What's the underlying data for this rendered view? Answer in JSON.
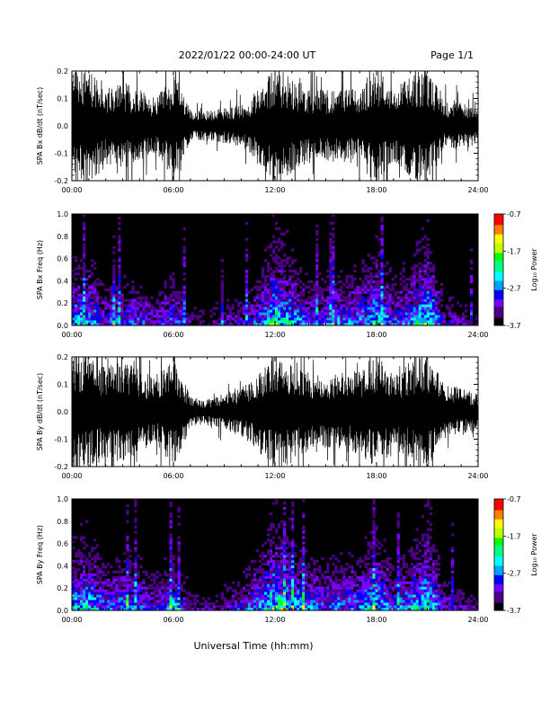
{
  "header": {
    "title": "2022/01/22  00:00-24:00 UT",
    "page": "Page 1/1"
  },
  "footer": {
    "xlabel": "Universal Time (hh:mm)"
  },
  "colors": {
    "trace": "#000000",
    "spectrogram_background": "#000000",
    "colormap": [
      "#000000",
      "#4b0082",
      "#7a00ff",
      "#0000ff",
      "#00a0ff",
      "#00ffff",
      "#00ff80",
      "#00ff00",
      "#c0ff00",
      "#ffff00",
      "#ff8000",
      "#ff0000"
    ]
  },
  "chart_data": [
    {
      "type": "line",
      "id": "bx_dbdt",
      "ylabel": "SPA Bx dB/dt (nT/sec)",
      "x_ticks": [
        "00:00",
        "06:00",
        "12:00",
        "18:00",
        "24:00"
      ],
      "xlim": [
        0,
        24
      ],
      "ylim": [
        -0.2,
        0.2
      ],
      "y_ticks": [
        "-0.2",
        "-0.1",
        "0.0",
        "0.1",
        "0.2"
      ],
      "envelope": {
        "x_hours": [
          0,
          1,
          2,
          3,
          4,
          5,
          6,
          7,
          8,
          9,
          10,
          11,
          12,
          13,
          14,
          15,
          16,
          17,
          18,
          19,
          20,
          21,
          22,
          23,
          24
        ],
        "amplitude": [
          0.2,
          0.2,
          0.13,
          0.15,
          0.12,
          0.09,
          0.18,
          0.05,
          0.05,
          0.06,
          0.07,
          0.12,
          0.2,
          0.16,
          0.13,
          0.12,
          0.12,
          0.13,
          0.2,
          0.12,
          0.17,
          0.2,
          0.08,
          0.08,
          0.06
        ]
      }
    },
    {
      "type": "heatmap",
      "id": "bx_spectrogram",
      "ylabel": "SPA Bx Freq (Hz)",
      "x_ticks": [
        "00:00",
        "06:00",
        "12:00",
        "18:00",
        "24:00"
      ],
      "xlim": [
        0,
        24
      ],
      "ylim": [
        0,
        1.0
      ],
      "y_ticks": [
        "0.0",
        "0.2",
        "0.4",
        "0.6",
        "0.8",
        "1.0"
      ],
      "colorbar": {
        "label": "Log₁₀ Power",
        "range": [
          -3.7,
          -0.7
        ],
        "ticks": [
          "-0.7",
          "-1.7",
          "-2.7",
          "-3.7"
        ]
      },
      "activity": {
        "x_hours": [
          0,
          1,
          2,
          3,
          4,
          5,
          6,
          7,
          8,
          9,
          10,
          11,
          12,
          13,
          14,
          15,
          16,
          17,
          18,
          19,
          20,
          21,
          22,
          23,
          24
        ],
        "level": [
          0.7,
          0.75,
          0.55,
          0.6,
          0.55,
          0.45,
          0.65,
          0.35,
          0.35,
          0.4,
          0.45,
          0.6,
          0.95,
          0.75,
          0.6,
          0.6,
          0.65,
          0.65,
          0.85,
          0.6,
          0.7,
          0.95,
          0.45,
          0.4,
          0.35
        ]
      }
    },
    {
      "type": "line",
      "id": "by_dbdt",
      "ylabel": "SPA By dB/dt (nT/sec)",
      "x_ticks": [
        "00:00",
        "06:00",
        "12:00",
        "18:00",
        "24:00"
      ],
      "xlim": [
        0,
        24
      ],
      "ylim": [
        -0.2,
        0.2
      ],
      "y_ticks": [
        "-0.2",
        "-0.1",
        "0.0",
        "0.1",
        "0.2"
      ],
      "envelope": {
        "x_hours": [
          0,
          1,
          2,
          3,
          4,
          5,
          6,
          7,
          8,
          9,
          10,
          11,
          12,
          13,
          14,
          15,
          16,
          17,
          18,
          19,
          20,
          21,
          22,
          23,
          24
        ],
        "amplitude": [
          0.2,
          0.2,
          0.15,
          0.17,
          0.14,
          0.11,
          0.2,
          0.05,
          0.04,
          0.06,
          0.08,
          0.13,
          0.2,
          0.17,
          0.13,
          0.12,
          0.13,
          0.14,
          0.2,
          0.12,
          0.17,
          0.2,
          0.09,
          0.08,
          0.06
        ]
      }
    },
    {
      "type": "heatmap",
      "id": "by_spectrogram",
      "ylabel": "SPA By Freq (Hz)",
      "x_ticks": [
        "00:00",
        "06:00",
        "12:00",
        "18:00",
        "24:00"
      ],
      "xlim": [
        0,
        24
      ],
      "ylim": [
        0,
        1.0
      ],
      "y_ticks": [
        "0.0",
        "0.2",
        "0.4",
        "0.6",
        "0.8",
        "1.0"
      ],
      "colorbar": {
        "label": "Log₁₀ Power",
        "range": [
          -3.7,
          -0.7
        ],
        "ticks": [
          "-0.7",
          "-1.7",
          "-2.7",
          "-3.7"
        ]
      },
      "activity": {
        "x_hours": [
          0,
          1,
          2,
          3,
          4,
          5,
          6,
          7,
          8,
          9,
          10,
          11,
          12,
          13,
          14,
          15,
          16,
          17,
          18,
          19,
          20,
          21,
          22,
          23,
          24
        ],
        "level": [
          0.75,
          0.8,
          0.6,
          0.65,
          0.6,
          0.5,
          0.7,
          0.4,
          0.35,
          0.4,
          0.5,
          0.65,
          0.95,
          0.8,
          0.65,
          0.6,
          0.65,
          0.65,
          0.85,
          0.6,
          0.7,
          0.95,
          0.45,
          0.4,
          0.35
        ]
      }
    }
  ]
}
